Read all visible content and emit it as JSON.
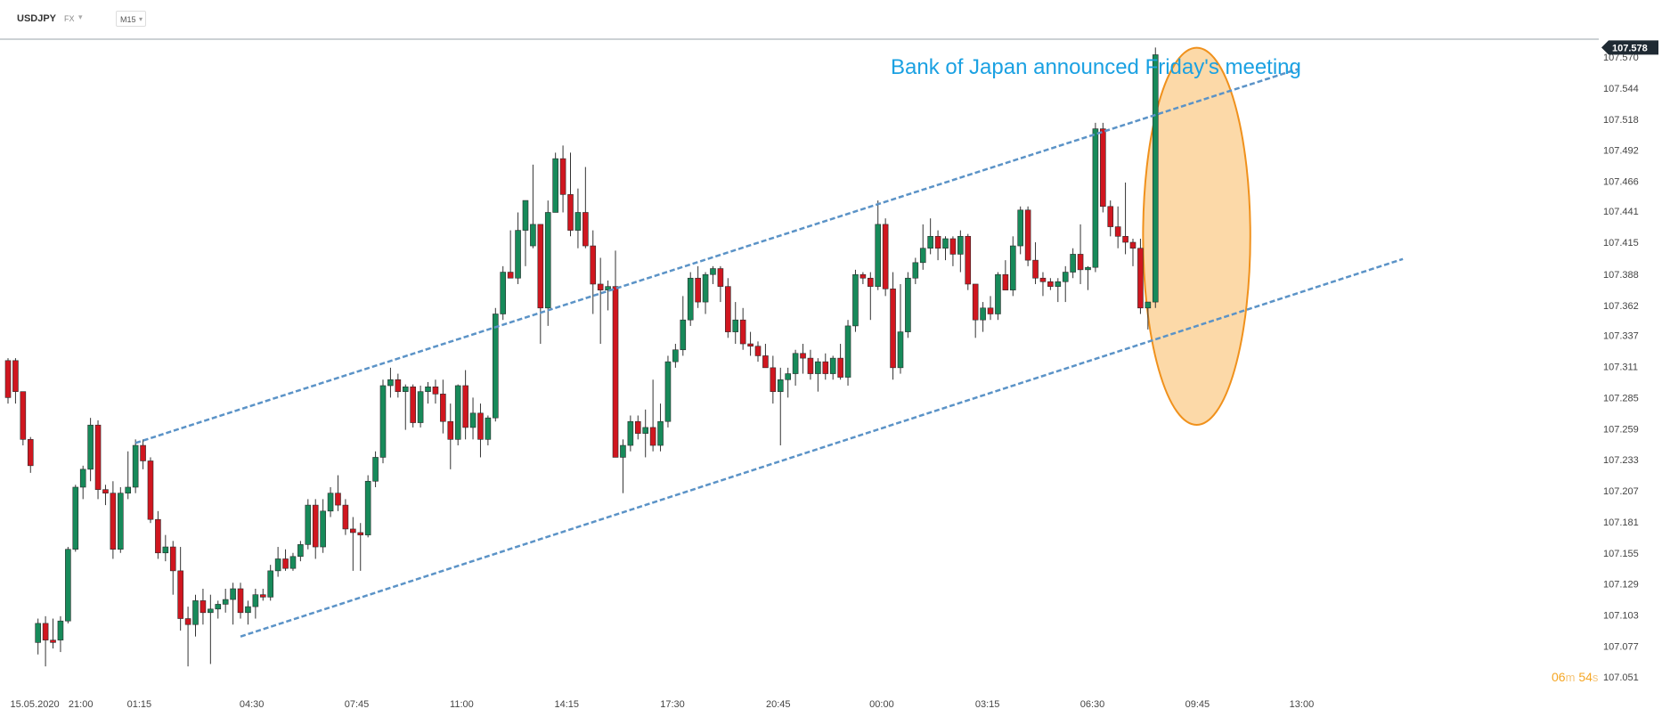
{
  "header": {
    "symbol": "USDJPY",
    "market": "FX",
    "timeframe": "M15"
  },
  "countdown": {
    "minutes": "06",
    "min_unit": "m",
    "seconds": "54",
    "sec_unit": "s"
  },
  "colors": {
    "bull": "#178a5a",
    "bear": "#d0161f",
    "wick": "#333333",
    "channel": "#5b93c7",
    "annotation_text": "#1ba1e2",
    "highlight_fill": "#fcd9a8",
    "highlight_stroke": "#f0911c",
    "price_tag_bg": "#1f2a33",
    "axis_text": "#444444"
  },
  "chart_data": {
    "type": "candlestick",
    "symbol": "USDJPY",
    "timeframe": "M15",
    "ylim": [
      107.04,
      107.585
    ],
    "y_ticks": [
      "107.570",
      "107.544",
      "107.518",
      "107.492",
      "107.466",
      "107.441",
      "107.415",
      "107.388",
      "107.362",
      "107.337",
      "107.311",
      "107.285",
      "107.259",
      "107.233",
      "107.207",
      "107.181",
      "107.155",
      "107.129",
      "107.103",
      "107.077",
      "107.051"
    ],
    "x_labels": [
      {
        "label": "15.05.2020",
        "index": 0.3
      },
      {
        "label": "21:00",
        "index": 9.7
      },
      {
        "label": "01:15",
        "index": 17.5
      },
      {
        "label": "04:30",
        "index": 32.5
      },
      {
        "label": "07:45",
        "index": 46.5
      },
      {
        "label": "11:00",
        "index": 60.5
      },
      {
        "label": "14:15",
        "index": 74.5
      },
      {
        "label": "17:30",
        "index": 88.6
      },
      {
        "label": "20:45",
        "index": 102.7
      },
      {
        "label": "00:00",
        "index": 116.5
      },
      {
        "label": "03:15",
        "index": 130.6
      },
      {
        "label": "06:30",
        "index": 144.6
      },
      {
        "label": "09:45",
        "index": 158.6
      },
      {
        "label": "13:00",
        "index": 172.5
      }
    ],
    "current_price": "107.578",
    "current_price_value": 107.578,
    "annotation": "Bank of Japan announced Friday's meeting",
    "channel": {
      "upper": [
        {
          "i": 17,
          "p": 107.247
        },
        {
          "i": 172,
          "p": 107.56
        }
      ],
      "lower": [
        {
          "i": 31,
          "p": 107.085
        },
        {
          "i": 186,
          "p": 107.401
        }
      ]
    },
    "highlight": {
      "i_center": 158.5,
      "p_center": 107.42,
      "i_radius": 6.2,
      "p_radius": 0.128
    },
    "candles": [
      [
        107.316,
        107.318,
        107.28,
        107.285
      ],
      [
        107.316,
        107.318,
        107.28,
        107.29
      ],
      [
        107.29,
        107.29,
        107.245,
        107.25
      ],
      [
        107.25,
        107.252,
        107.222,
        107.228
      ],
      [
        107.08,
        107.1,
        107.07,
        107.096
      ],
      [
        107.096,
        107.102,
        107.06,
        107.082
      ],
      [
        107.082,
        107.1,
        107.075,
        107.08
      ],
      [
        107.082,
        107.102,
        107.072,
        107.098
      ],
      [
        107.098,
        107.16,
        107.096,
        107.158
      ],
      [
        107.158,
        107.212,
        107.156,
        107.21
      ],
      [
        107.21,
        107.228,
        107.2,
        107.225
      ],
      [
        107.225,
        107.268,
        107.215,
        107.262
      ],
      [
        107.262,
        107.266,
        107.2,
        107.208
      ],
      [
        107.208,
        107.212,
        107.195,
        107.205
      ],
      [
        107.205,
        107.215,
        107.15,
        107.158
      ],
      [
        107.158,
        107.21,
        107.155,
        107.205
      ],
      [
        107.205,
        107.24,
        107.2,
        107.21
      ],
      [
        107.21,
        107.25,
        107.205,
        107.245
      ],
      [
        107.245,
        107.25,
        107.225,
        107.232
      ],
      [
        107.232,
        107.235,
        107.18,
        107.183
      ],
      [
        107.183,
        107.19,
        107.15,
        107.155
      ],
      [
        107.155,
        107.17,
        107.148,
        107.16
      ],
      [
        107.16,
        107.165,
        107.12,
        107.14
      ],
      [
        107.14,
        107.16,
        107.09,
        107.1
      ],
      [
        107.1,
        107.11,
        107.06,
        107.095
      ],
      [
        107.095,
        107.12,
        107.085,
        107.115
      ],
      [
        107.115,
        107.125,
        107.095,
        107.105
      ],
      [
        107.105,
        107.12,
        107.062,
        107.108
      ],
      [
        107.108,
        107.115,
        107.1,
        107.112
      ],
      [
        107.112,
        107.125,
        107.105,
        107.116
      ],
      [
        107.116,
        107.13,
        107.095,
        107.125
      ],
      [
        107.125,
        107.13,
        107.1,
        107.105
      ],
      [
        107.105,
        107.115,
        107.095,
        107.11
      ],
      [
        107.11,
        107.125,
        107.1,
        107.12
      ],
      [
        107.12,
        107.125,
        107.115,
        107.118
      ],
      [
        107.118,
        107.145,
        107.115,
        107.14
      ],
      [
        107.14,
        107.16,
        107.135,
        107.15
      ],
      [
        107.15,
        107.158,
        107.14,
        107.142
      ],
      [
        107.142,
        107.155,
        107.14,
        107.152
      ],
      [
        107.152,
        107.165,
        107.148,
        107.162
      ],
      [
        107.162,
        107.2,
        107.158,
        107.195
      ],
      [
        107.195,
        107.2,
        107.15,
        107.16
      ],
      [
        107.16,
        107.2,
        107.155,
        107.19
      ],
      [
        107.19,
        107.21,
        107.185,
        107.205
      ],
      [
        107.205,
        107.22,
        107.19,
        107.195
      ],
      [
        107.195,
        107.2,
        107.17,
        107.175
      ],
      [
        107.175,
        107.185,
        107.14,
        107.172
      ],
      [
        107.172,
        107.18,
        107.14,
        107.17
      ],
      [
        107.17,
        107.22,
        107.168,
        107.215
      ],
      [
        107.215,
        107.24,
        107.21,
        107.235
      ],
      [
        107.235,
        107.3,
        107.23,
        107.295
      ],
      [
        107.295,
        107.31,
        107.285,
        107.3
      ],
      [
        107.3,
        107.305,
        107.285,
        107.29
      ],
      [
        107.29,
        107.296,
        107.258,
        107.294
      ],
      [
        107.294,
        107.296,
        107.26,
        107.264
      ],
      [
        107.264,
        107.295,
        107.26,
        107.29
      ],
      [
        107.29,
        107.298,
        107.28,
        107.294
      ],
      [
        107.294,
        107.3,
        107.28,
        107.288
      ],
      [
        107.288,
        107.3,
        107.255,
        107.265
      ],
      [
        107.265,
        107.28,
        107.225,
        107.25
      ],
      [
        107.25,
        107.296,
        107.245,
        107.295
      ],
      [
        107.295,
        107.308,
        107.25,
        107.26
      ],
      [
        107.26,
        107.285,
        107.25,
        107.272
      ],
      [
        107.272,
        107.28,
        107.235,
        107.25
      ],
      [
        107.25,
        107.27,
        107.245,
        107.268
      ],
      [
        107.268,
        107.36,
        107.265,
        107.355
      ],
      [
        107.355,
        107.395,
        107.35,
        107.39
      ],
      [
        107.39,
        107.425,
        107.385,
        107.385
      ],
      [
        107.385,
        107.44,
        107.38,
        107.425
      ],
      [
        107.425,
        107.45,
        107.395,
        107.45
      ],
      [
        107.412,
        107.48,
        107.41,
        107.43
      ],
      [
        107.43,
        107.43,
        107.33,
        107.36
      ],
      [
        107.36,
        107.45,
        107.345,
        107.44
      ],
      [
        107.44,
        107.49,
        107.44,
        107.485
      ],
      [
        107.485,
        107.496,
        107.44,
        107.455
      ],
      [
        107.455,
        107.49,
        107.42,
        107.425
      ],
      [
        107.425,
        107.46,
        107.41,
        107.44
      ],
      [
        107.44,
        107.478,
        107.41,
        107.412
      ],
      [
        107.412,
        107.425,
        107.355,
        107.38
      ],
      [
        107.38,
        107.402,
        107.33,
        107.375
      ],
      [
        107.375,
        107.383,
        107.358,
        107.378
      ],
      [
        107.378,
        107.408,
        107.235,
        107.235
      ],
      [
        107.235,
        107.25,
        107.205,
        107.245
      ],
      [
        107.245,
        107.27,
        107.24,
        107.265
      ],
      [
        107.265,
        107.27,
        107.25,
        107.255
      ],
      [
        107.255,
        107.275,
        107.235,
        107.26
      ],
      [
        107.26,
        107.3,
        107.24,
        107.245
      ],
      [
        107.245,
        107.28,
        107.24,
        107.265
      ],
      [
        107.265,
        107.32,
        107.26,
        107.315
      ],
      [
        107.315,
        107.33,
        107.31,
        107.325
      ],
      [
        107.325,
        107.37,
        107.32,
        107.35
      ],
      [
        107.35,
        107.39,
        107.345,
        107.385
      ],
      [
        107.385,
        107.395,
        107.36,
        107.365
      ],
      [
        107.365,
        107.39,
        107.355,
        107.388
      ],
      [
        107.388,
        107.395,
        107.38,
        107.393
      ],
      [
        107.393,
        107.395,
        107.365,
        107.378
      ],
      [
        107.378,
        107.385,
        107.335,
        107.34
      ],
      [
        107.34,
        107.365,
        107.33,
        107.35
      ],
      [
        107.35,
        107.36,
        107.325,
        107.33
      ],
      [
        107.33,
        107.34,
        107.32,
        107.328
      ],
      [
        107.328,
        107.332,
        107.315,
        107.32
      ],
      [
        107.32,
        107.33,
        107.315,
        107.31
      ],
      [
        107.31,
        107.32,
        107.28,
        107.29
      ],
      [
        107.29,
        107.31,
        107.245,
        107.3
      ],
      [
        107.3,
        107.31,
        107.285,
        107.305
      ],
      [
        107.305,
        107.325,
        107.295,
        107.322
      ],
      [
        107.322,
        107.33,
        107.305,
        107.318
      ],
      [
        107.318,
        107.325,
        107.3,
        107.305
      ],
      [
        107.305,
        107.318,
        107.29,
        107.315
      ],
      [
        107.315,
        107.322,
        107.3,
        107.305
      ],
      [
        107.305,
        107.32,
        107.3,
        107.318
      ],
      [
        107.318,
        107.33,
        107.3,
        107.302
      ],
      [
        107.302,
        107.35,
        107.295,
        107.345
      ],
      [
        107.345,
        107.392,
        107.34,
        107.388
      ],
      [
        107.388,
        107.39,
        107.38,
        107.385
      ],
      [
        107.385,
        107.39,
        107.35,
        107.378
      ],
      [
        107.378,
        107.45,
        107.375,
        107.43
      ],
      [
        107.43,
        107.435,
        107.37,
        107.376
      ],
      [
        107.376,
        107.39,
        107.3,
        107.31
      ],
      [
        107.31,
        107.38,
        107.305,
        107.34
      ],
      [
        107.34,
        107.39,
        107.335,
        107.385
      ],
      [
        107.385,
        107.402,
        107.38,
        107.398
      ],
      [
        107.398,
        107.43,
        107.392,
        107.41
      ],
      [
        107.41,
        107.435,
        107.405,
        107.42
      ],
      [
        107.42,
        107.425,
        107.4,
        107.41
      ],
      [
        107.41,
        107.42,
        107.4,
        107.418
      ],
      [
        107.418,
        107.42,
        107.395,
        107.405
      ],
      [
        107.405,
        107.425,
        107.39,
        107.42
      ],
      [
        107.42,
        107.422,
        107.375,
        107.38
      ],
      [
        107.38,
        107.38,
        107.335,
        107.35
      ],
      [
        107.35,
        107.365,
        107.34,
        107.36
      ],
      [
        107.36,
        107.37,
        107.35,
        107.355
      ],
      [
        107.355,
        107.39,
        107.35,
        107.388
      ],
      [
        107.388,
        107.4,
        107.375,
        107.375
      ],
      [
        107.375,
        107.42,
        107.37,
        107.412
      ],
      [
        107.412,
        107.445,
        107.405,
        107.442
      ],
      [
        107.442,
        107.445,
        107.395,
        107.4
      ],
      [
        107.4,
        107.415,
        107.38,
        107.385
      ],
      [
        107.385,
        107.39,
        107.37,
        107.382
      ],
      [
        107.382,
        107.385,
        107.375,
        107.378
      ],
      [
        107.378,
        107.385,
        107.365,
        107.382
      ],
      [
        107.382,
        107.395,
        107.365,
        107.39
      ],
      [
        107.39,
        107.41,
        107.385,
        107.405
      ],
      [
        107.405,
        107.43,
        107.38,
        107.392
      ],
      [
        107.392,
        107.395,
        107.375,
        107.394
      ],
      [
        107.394,
        107.515,
        107.39,
        107.51
      ],
      [
        107.51,
        107.515,
        107.44,
        107.445
      ],
      [
        107.445,
        107.45,
        107.42,
        107.428
      ],
      [
        107.428,
        107.445,
        107.41,
        107.42
      ],
      [
        107.42,
        107.465,
        107.405,
        107.415
      ],
      [
        107.415,
        107.418,
        107.395,
        107.41
      ],
      [
        107.41,
        107.418,
        107.355,
        107.36
      ],
      [
        107.36,
        107.365,
        107.342,
        107.365
      ],
      [
        107.365,
        107.578,
        107.36,
        107.572
      ]
    ]
  }
}
